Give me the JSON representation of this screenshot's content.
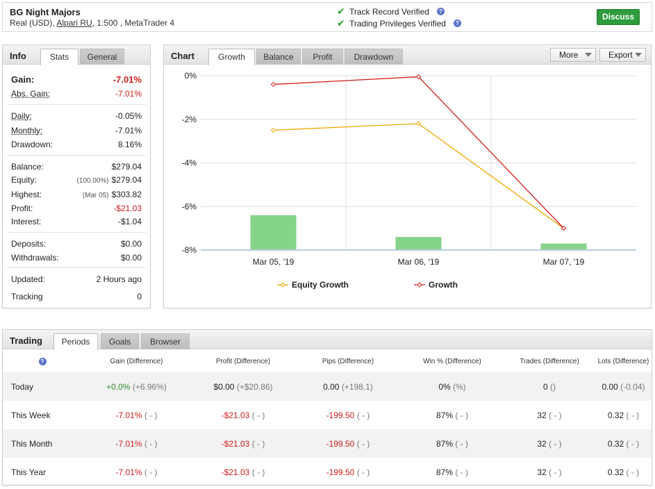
{
  "header": {
    "system_name": "BG Night Majors",
    "subtitle_prefix": "Real (USD),",
    "broker": "Alpari RU",
    "subtitle_suffix": ", 1:500 , MetaTrader 4",
    "verified_1": "Track Record Verified",
    "verified_2": "Trading Privileges Verified",
    "discuss_label": "Discuss",
    "check_color": "#2e9b2e",
    "discuss_color": "#2e9b3c"
  },
  "info": {
    "title": "Info",
    "tabs": [
      "Stats",
      "General"
    ],
    "gain": {
      "label": "Gain:",
      "value": "-7.01%"
    },
    "abs_gain": {
      "label": "Abs. Gain:",
      "value": "-7.01%"
    },
    "daily": {
      "label": "Daily:",
      "value": "-0.05%"
    },
    "monthly": {
      "label": "Monthly:",
      "value": "-7.01%"
    },
    "drawdown": {
      "label": "Drawdown:",
      "value": "8.16%"
    },
    "balance": {
      "label": "Balance:",
      "value": "$279.04"
    },
    "equity": {
      "label": "Equity:",
      "note": "(100.00%)",
      "value": "$279.04"
    },
    "highest": {
      "label": "Highest:",
      "note": "(Mar 05)",
      "value": "$303.82"
    },
    "profit": {
      "label": "Profit:",
      "value": "-$21.03"
    },
    "interest": {
      "label": "Interest:",
      "value": "-$1.04"
    },
    "deposits": {
      "label": "Deposits:",
      "value": "$0.00"
    },
    "withdrawals": {
      "label": "Withdrawals:",
      "value": "$0.00"
    },
    "updated": {
      "label": "Updated:",
      "value": "2 Hours ago"
    },
    "tracking": {
      "label": "Tracking",
      "value": "0"
    }
  },
  "chart_panel": {
    "title": "Chart",
    "tabs": [
      "Growth",
      "Balance",
      "Profit",
      "Drawdown"
    ],
    "more_label": "More",
    "export_label": "Export"
  },
  "chart_data": {
    "type": "line",
    "categories": [
      "Mar 05, '19",
      "Mar 06, '19",
      "Mar 07, '19"
    ],
    "ylim": [
      -8,
      0
    ],
    "yticks": [
      "0%",
      "-2%",
      "-4%",
      "-6%",
      "-8%"
    ],
    "ytick_values": [
      0,
      -2,
      -4,
      -6,
      -8
    ],
    "series": [
      {
        "name": "Equity Growth",
        "type": "line",
        "color": "#f0a800",
        "values": [
          -2.5,
          -2.2,
          -7.0
        ]
      },
      {
        "name": "Growth",
        "type": "line",
        "color": "#d11c1c",
        "values": [
          -0.4,
          -0.05,
          -7.0
        ]
      },
      {
        "type": "bar",
        "color": "#86d38a",
        "values": [
          -6.4,
          -7.4,
          -7.7
        ]
      }
    ],
    "legend_position": "bottom",
    "grid": true
  },
  "trading": {
    "title": "Trading",
    "tabs": [
      "Periods",
      "Goals",
      "Browser"
    ],
    "columns": [
      "Gain (Difference)",
      "Profit (Difference)",
      "Pips (Difference)",
      "Win % (Difference)",
      "Trades (Difference)",
      "Lots (Difference)"
    ],
    "rows": [
      {
        "period": "Today",
        "gain": "+0.0%",
        "gain_diff": "(+6.96%)",
        "profit": "$0.00",
        "profit_diff": "(+$20.86)",
        "pips": "0.00",
        "pips_diff": "(+198.1)",
        "win": "0%",
        "win_diff": "(%)",
        "trades": "0",
        "trades_diff": "()",
        "lots": "0.00",
        "lots_diff": "(-0.04)"
      },
      {
        "period": "This Week",
        "gain": "-7.01%",
        "gain_diff": "( - )",
        "profit": "-$21.03",
        "profit_diff": "( - )",
        "pips": "-199.50",
        "pips_diff": "( - )",
        "win": "87%",
        "win_diff": "( - )",
        "trades": "32",
        "trades_diff": "( - )",
        "lots": "0.32",
        "lots_diff": "( - )"
      },
      {
        "period": "This Month",
        "gain": "-7.01%",
        "gain_diff": "( - )",
        "profit": "-$21.03",
        "profit_diff": "( - )",
        "pips": "-199.50",
        "pips_diff": "( - )",
        "win": "87%",
        "win_diff": "( - )",
        "trades": "32",
        "trades_diff": "( - )",
        "lots": "0.32",
        "lots_diff": "( - )"
      },
      {
        "period": "This Year",
        "gain": "-7.01%",
        "gain_diff": "( - )",
        "profit": "-$21.03",
        "profit_diff": "( - )",
        "pips": "-199.50",
        "pips_diff": "( - )",
        "win": "87%",
        "win_diff": "( - )",
        "trades": "32",
        "trades_diff": "( - )",
        "lots": "0.32",
        "lots_diff": "( - )"
      }
    ]
  }
}
